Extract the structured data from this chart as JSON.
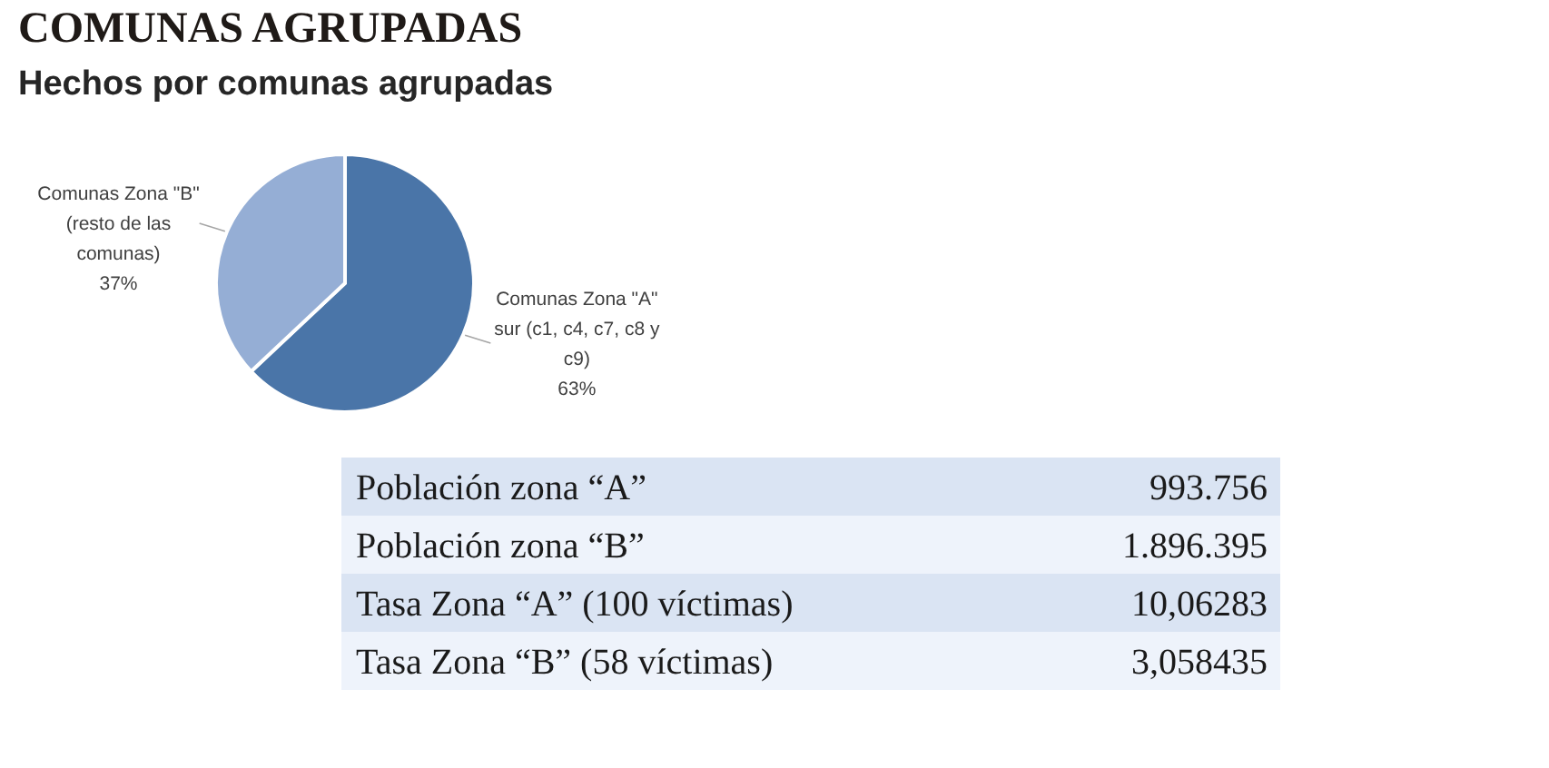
{
  "chart_data": [
    {
      "type": "pie",
      "title": "COMUNAS AGRUPADAS",
      "subtitle": "Hechos por comunas agrupadas",
      "categories": [
        "Comunas Zona \"A\" sur (c1, c4, c7, c8 y c9)",
        "Comunas Zona \"B\" (resto de las comunas)"
      ],
      "values": [
        63,
        37
      ],
      "colors": [
        "#4a75a8",
        "#95aed5"
      ],
      "value_labels": [
        "63%",
        "37%"
      ]
    },
    {
      "type": "other",
      "annotations": [
        "Población zona “A”",
        "993.756",
        "Población zona “B”",
        "1.896.395",
        "Tasa Zona “A” (100 víctimas)",
        "10,06283",
        "Tasa Zona “B” (58 víctimas)",
        "3,058435"
      ]
    }
  ]
}
